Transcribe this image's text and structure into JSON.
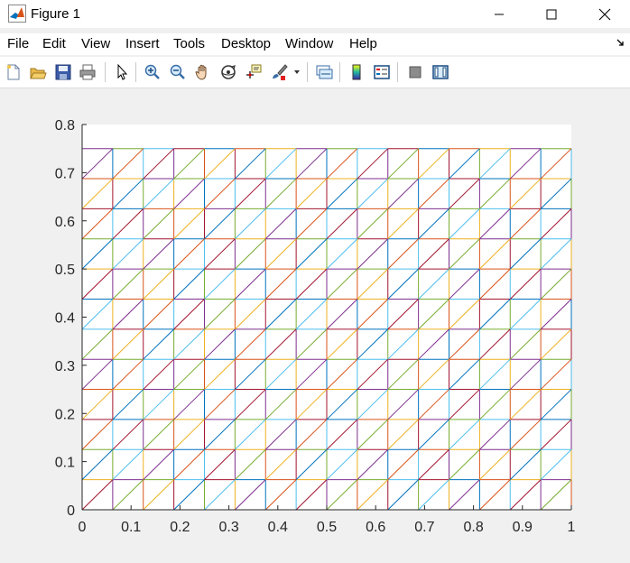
{
  "window": {
    "title": "Figure 1",
    "minimize_icon": "minimize-icon",
    "maximize_icon": "maximize-icon",
    "close_icon": "close-icon"
  },
  "menu": {
    "items": [
      "File",
      "Edit",
      "View",
      "Insert",
      "Tools",
      "Desktop",
      "Window",
      "Help"
    ],
    "dock_icon": "dock-arrow-icon"
  },
  "toolbar": {
    "icons": [
      "new-figure-icon",
      "open-file-icon",
      "save-icon",
      "print-icon",
      "pointer-icon",
      "zoom-in-icon",
      "zoom-out-icon",
      "pan-hand-icon",
      "rotate-3d-icon",
      "data-cursor-icon",
      "brush-icon",
      "brush-dropdown-icon",
      "link-plot-icon",
      "colorbar-icon",
      "legend-icon",
      "hide-plot-tools-icon",
      "show-plot-tools-icon"
    ]
  },
  "chart_data": {
    "type": "line",
    "description_of_marks": "triangular mesh edges (triplot) on grid x step 1/16, y step 1/16",
    "x_grid": [
      0,
      0.0625,
      0.125,
      0.1875,
      0.25,
      0.3125,
      0.375,
      0.4375,
      0.5,
      0.5625,
      0.625,
      0.6875,
      0.75,
      0.8125,
      0.875,
      0.9375,
      1
    ],
    "y_grid": [
      0,
      0.0625,
      0.125,
      0.1875,
      0.25,
      0.3125,
      0.375,
      0.4375,
      0.5,
      0.5625,
      0.625,
      0.6875,
      0.75
    ],
    "xlim": [
      0,
      1
    ],
    "ylim": [
      0,
      0.8
    ],
    "xticks": [
      "0",
      "0.1",
      "0.2",
      "0.3",
      "0.4",
      "0.5",
      "0.6",
      "0.7",
      "0.8",
      "0.9",
      "1"
    ],
    "yticks": [
      "0",
      "0.1",
      "0.2",
      "0.3",
      "0.4",
      "0.5",
      "0.6",
      "0.7",
      "0.8"
    ],
    "title": "",
    "xlabel": "",
    "ylabel": "",
    "colors": [
      "#0072bd",
      "#d95319",
      "#edb120",
      "#7e2f8e",
      "#77ac30",
      "#4dbeee",
      "#a2142f"
    ],
    "grid": false,
    "legend": "none"
  }
}
